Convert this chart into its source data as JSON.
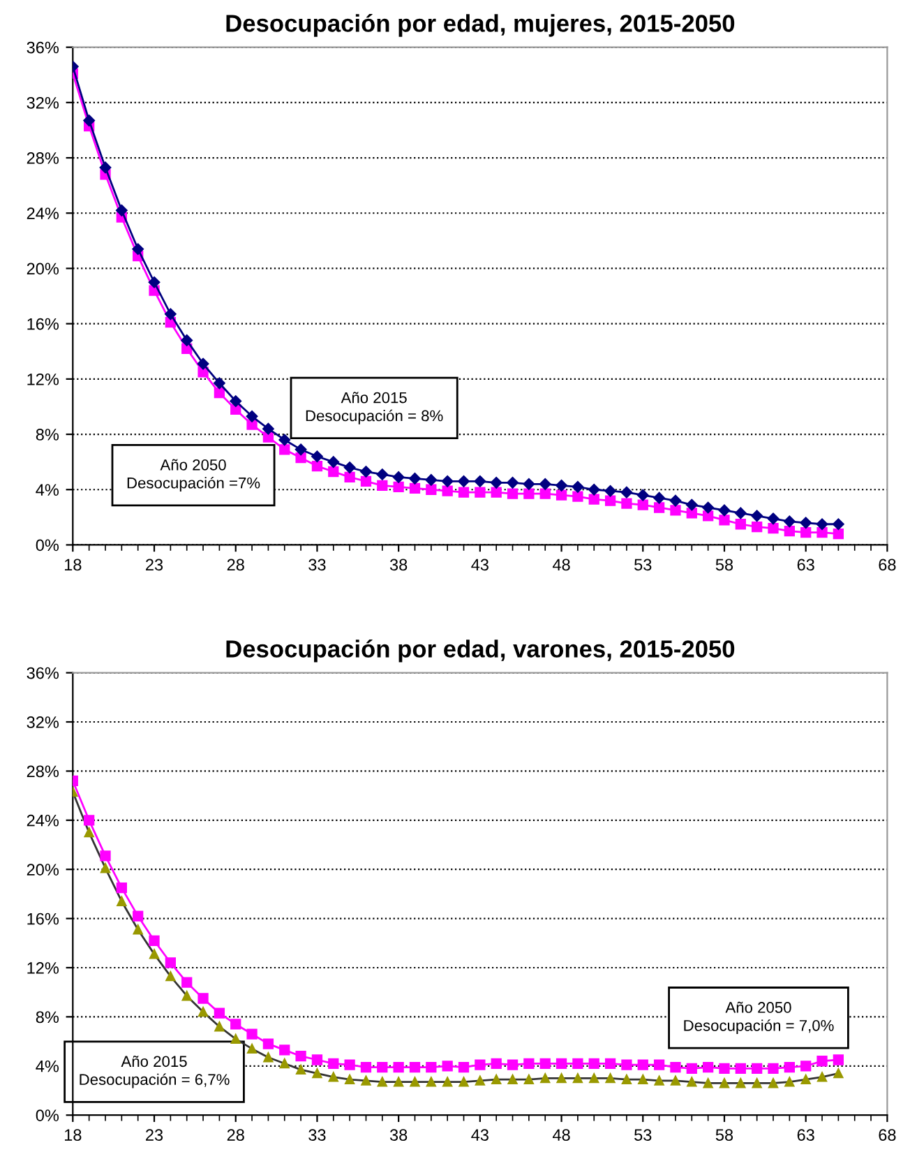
{
  "chart_data": [
    {
      "type": "line",
      "title": "Desocupación por edad, mujeres, 2015-2050",
      "x": [
        18,
        19,
        20,
        21,
        22,
        23,
        24,
        25,
        26,
        27,
        28,
        29,
        30,
        31,
        32,
        33,
        34,
        35,
        36,
        37,
        38,
        39,
        40,
        41,
        42,
        43,
        44,
        45,
        46,
        47,
        48,
        49,
        50,
        51,
        52,
        53,
        54,
        55,
        56,
        57,
        58,
        59,
        60,
        61,
        62,
        63,
        64,
        65
      ],
      "series": [
        {
          "color": "#000080",
          "marker": "diamond",
          "values": [
            34.6,
            30.7,
            27.3,
            24.2,
            21.4,
            19.0,
            16.7,
            14.8,
            13.1,
            11.7,
            10.4,
            9.3,
            8.4,
            7.6,
            6.9,
            6.4,
            6.0,
            5.6,
            5.3,
            5.1,
            4.9,
            4.8,
            4.7,
            4.6,
            4.6,
            4.6,
            4.5,
            4.5,
            4.4,
            4.4,
            4.3,
            4.2,
            4.0,
            3.9,
            3.8,
            3.6,
            3.4,
            3.2,
            2.9,
            2.7,
            2.5,
            2.3,
            2.1,
            1.9,
            1.7,
            1.6,
            1.5,
            1.5
          ]
        },
        {
          "color": "#ff00ff",
          "marker": "square",
          "values": [
            34.1,
            30.3,
            26.8,
            23.7,
            20.9,
            18.4,
            16.1,
            14.2,
            12.5,
            11.0,
            9.8,
            8.7,
            7.8,
            6.9,
            6.3,
            5.7,
            5.3,
            4.9,
            4.6,
            4.3,
            4.2,
            4.1,
            4.0,
            3.9,
            3.8,
            3.8,
            3.8,
            3.7,
            3.7,
            3.7,
            3.6,
            3.5,
            3.3,
            3.2,
            3.0,
            2.9,
            2.7,
            2.5,
            2.3,
            2.1,
            1.8,
            1.5,
            1.3,
            1.2,
            1.0,
            0.9,
            0.9,
            0.8
          ]
        }
      ],
      "annotations": [
        "Año 2015\nDesocupación = 8%",
        "Año 2050\nDesocupación =7%"
      ],
      "xlim": [
        18,
        68
      ],
      "xticks": [
        18,
        23,
        28,
        33,
        38,
        43,
        48,
        53,
        58,
        63,
        68
      ],
      "ylim": [
        0,
        36
      ],
      "yticks": [
        {
          "value": 0,
          "label": "0%"
        },
        {
          "value": 4,
          "label": "4%"
        },
        {
          "value": 8,
          "label": "8%"
        },
        {
          "value": 12,
          "label": "12%"
        },
        {
          "value": 16,
          "label": "16%"
        },
        {
          "value": 20,
          "label": "20%"
        },
        {
          "value": 24,
          "label": "24%"
        },
        {
          "value": 28,
          "label": "28%"
        },
        {
          "value": 32,
          "label": "32%"
        },
        {
          "value": 36,
          "label": "36%"
        }
      ],
      "grid": "y",
      "line_style": "solid"
    },
    {
      "type": "line",
      "title": "Desocupación por edad, varones, 2015-2050",
      "x": [
        18,
        19,
        20,
        21,
        22,
        23,
        24,
        25,
        26,
        27,
        28,
        29,
        30,
        31,
        32,
        33,
        34,
        35,
        36,
        37,
        38,
        39,
        40,
        41,
        42,
        43,
        44,
        45,
        46,
        47,
        48,
        49,
        50,
        51,
        52,
        53,
        54,
        55,
        56,
        57,
        58,
        59,
        60,
        61,
        62,
        63,
        64,
        65
      ],
      "series": [
        {
          "color": "#ff00ff",
          "marker": "square",
          "values": [
            27.2,
            24.0,
            21.1,
            18.5,
            16.2,
            14.2,
            12.4,
            10.8,
            9.5,
            8.3,
            7.4,
            6.6,
            5.8,
            5.3,
            4.8,
            4.5,
            4.2,
            4.1,
            3.9,
            3.9,
            3.9,
            3.9,
            3.9,
            4.0,
            3.9,
            4.1,
            4.2,
            4.1,
            4.2,
            4.2,
            4.2,
            4.2,
            4.2,
            4.2,
            4.1,
            4.1,
            4.1,
            3.9,
            3.8,
            3.9,
            3.8,
            3.8,
            3.8,
            3.8,
            3.9,
            4.0,
            4.4,
            4.5
          ]
        },
        {
          "color": "#999900",
          "marker": "triangle",
          "values": [
            26.3,
            23.0,
            20.1,
            17.4,
            15.1,
            13.1,
            11.3,
            9.7,
            8.4,
            7.2,
            6.2,
            5.4,
            4.7,
            4.2,
            3.7,
            3.4,
            3.1,
            2.9,
            2.8,
            2.7,
            2.7,
            2.7,
            2.7,
            2.7,
            2.7,
            2.8,
            2.9,
            2.9,
            2.9,
            3.0,
            3.0,
            3.0,
            3.0,
            3.0,
            2.9,
            2.9,
            2.8,
            2.8,
            2.7,
            2.6,
            2.6,
            2.6,
            2.6,
            2.6,
            2.7,
            2.9,
            3.1,
            3.4
          ]
        }
      ],
      "annotations": [
        "Año 2050\nDesocupación = 7,0%",
        "Año 2015\nDesocupación = 6,7%"
      ],
      "xlim": [
        18,
        68
      ],
      "xticks": [
        18,
        23,
        28,
        33,
        38,
        43,
        48,
        53,
        58,
        63,
        68
      ],
      "ylim": [
        0,
        36
      ],
      "yticks": [
        {
          "value": 0,
          "label": "0%"
        },
        {
          "value": 4,
          "label": "4%"
        },
        {
          "value": 8,
          "label": "8%"
        },
        {
          "value": 12,
          "label": "12%"
        },
        {
          "value": 16,
          "label": "16%"
        },
        {
          "value": 20,
          "label": "20%"
        },
        {
          "value": 24,
          "label": "24%"
        },
        {
          "value": 28,
          "label": "28%"
        },
        {
          "value": 32,
          "label": "32%"
        },
        {
          "value": 36,
          "label": "36%"
        }
      ],
      "grid": "y",
      "line_style": "solid"
    }
  ]
}
